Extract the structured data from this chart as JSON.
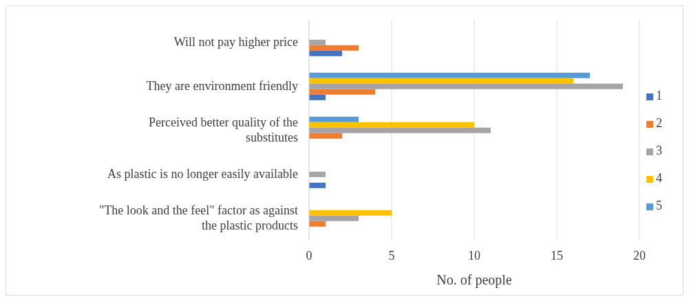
{
  "chart_data": {
    "type": "bar",
    "orientation": "horizontal",
    "xlabel": "No. of people",
    "categories": [
      "Will not pay higher price",
      "They are environment friendly",
      "Perceived better quality of the substitutes",
      "As plastic is no longer easily available",
      "\"The look and the feel\" factor as against the plastic products"
    ],
    "series": [
      {
        "name": "1",
        "color": "#4472c4",
        "values": [
          2,
          1,
          0,
          1,
          0
        ]
      },
      {
        "name": "2",
        "color": "#ed7d31",
        "values": [
          3,
          4,
          2,
          0,
          1
        ]
      },
      {
        "name": "3",
        "color": "#a5a5a5",
        "values": [
          1,
          19,
          11,
          1,
          3
        ]
      },
      {
        "name": "4",
        "color": "#ffc000",
        "values": [
          0,
          16,
          10,
          0,
          5
        ]
      },
      {
        "name": "5",
        "color": "#5b9bd5",
        "values": [
          0,
          17,
          3,
          0,
          0
        ]
      }
    ],
    "xlim": [
      0,
      20
    ],
    "xticks": [
      0,
      5,
      10,
      15,
      20
    ],
    "grid": "x",
    "legend": "right"
  }
}
